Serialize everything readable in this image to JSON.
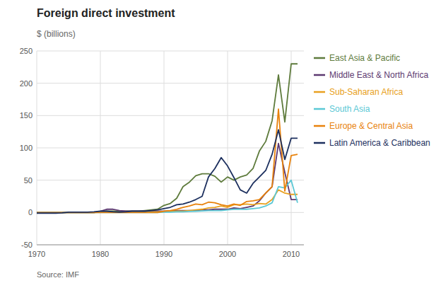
{
  "chart_data": {
    "type": "line",
    "title": "Foreign direct investment",
    "ylabel": "$ (billions)",
    "source": "Source: IMF",
    "x": [
      1970,
      1971,
      1972,
      1973,
      1974,
      1975,
      1976,
      1977,
      1978,
      1979,
      1980,
      1981,
      1982,
      1983,
      1984,
      1985,
      1986,
      1987,
      1988,
      1989,
      1990,
      1991,
      1992,
      1993,
      1994,
      1995,
      1996,
      1997,
      1998,
      1999,
      2000,
      2001,
      2002,
      2003,
      2004,
      2005,
      2006,
      2007,
      2008,
      2009,
      2010,
      2011
    ],
    "xlim": [
      1970,
      2012
    ],
    "xticks": [
      1970,
      1980,
      1990,
      2000,
      2010
    ],
    "ylim": [
      -50,
      250
    ],
    "yticks": [
      -50,
      0,
      50,
      100,
      150,
      200,
      250
    ],
    "grid": true,
    "legend": "right",
    "series": [
      {
        "name": "East Asia & Pacific",
        "color": "#5e7b3c",
        "values": [
          0,
          0,
          0,
          0,
          0,
          0,
          0,
          0,
          0,
          0,
          1,
          2,
          2,
          2,
          2,
          2,
          2,
          3,
          4,
          5,
          11,
          14,
          22,
          40,
          47,
          57,
          60,
          60,
          56,
          47,
          55,
          50,
          55,
          58,
          68,
          95,
          110,
          142,
          213,
          140,
          230,
          230
        ]
      },
      {
        "name": "Middle East & North Africa",
        "color": "#5c3870",
        "values": [
          0,
          0,
          0,
          0,
          0,
          0,
          0,
          0,
          0,
          0,
          2,
          5,
          5,
          3,
          2,
          2,
          2,
          2,
          2,
          2,
          2,
          2,
          3,
          3,
          3,
          3,
          4,
          4,
          5,
          5,
          5,
          7,
          6,
          8,
          10,
          18,
          30,
          40,
          107,
          62,
          20,
          20
        ]
      },
      {
        "name": "Sub-Saharan Africa",
        "color": "#e8a020",
        "values": [
          0,
          0,
          0,
          0,
          0,
          0,
          0,
          0,
          0,
          0,
          0.5,
          0.5,
          0.5,
          0.5,
          0.5,
          0.5,
          0.5,
          0.5,
          1,
          1,
          1.5,
          2,
          2,
          2,
          3,
          4,
          5,
          7,
          8,
          10,
          8,
          12,
          12,
          13,
          12,
          14,
          13,
          20,
          35,
          30,
          28,
          28
        ]
      },
      {
        "name": "South Asia",
        "color": "#5bc8d5",
        "values": [
          0,
          0,
          0,
          0,
          0,
          0,
          0,
          0,
          0,
          0,
          0,
          0,
          0,
          0,
          0,
          0,
          0,
          0,
          0,
          0,
          0.5,
          0.5,
          1,
          1,
          1.5,
          2,
          2.5,
          3,
          3,
          3,
          4,
          5,
          5,
          5,
          6,
          7,
          10,
          15,
          40,
          38,
          50,
          15
        ]
      },
      {
        "name": "Europe & Central Asia",
        "color": "#e8820c",
        "values": [
          0,
          0,
          0,
          0,
          0,
          0,
          0,
          0,
          0,
          0,
          0,
          0,
          0,
          0,
          0,
          0,
          0,
          0,
          0,
          0,
          2,
          3,
          5,
          8,
          10,
          13,
          12,
          16,
          15,
          12,
          10,
          13,
          11,
          17,
          18,
          20,
          30,
          40,
          160,
          33,
          88,
          90
        ]
      },
      {
        "name": "Latin America & Caribbean",
        "color": "#1c2f5e",
        "values": [
          -1,
          -1,
          -1,
          -1,
          -0.5,
          0.5,
          0.5,
          0.5,
          0.5,
          1,
          2,
          2,
          1,
          0.5,
          1,
          2,
          2,
          2,
          3,
          4,
          6,
          8,
          12,
          13,
          16,
          20,
          25,
          55,
          68,
          85,
          72,
          54,
          35,
          30,
          45,
          55,
          65,
          90,
          128,
          82,
          115,
          115
        ]
      }
    ]
  }
}
